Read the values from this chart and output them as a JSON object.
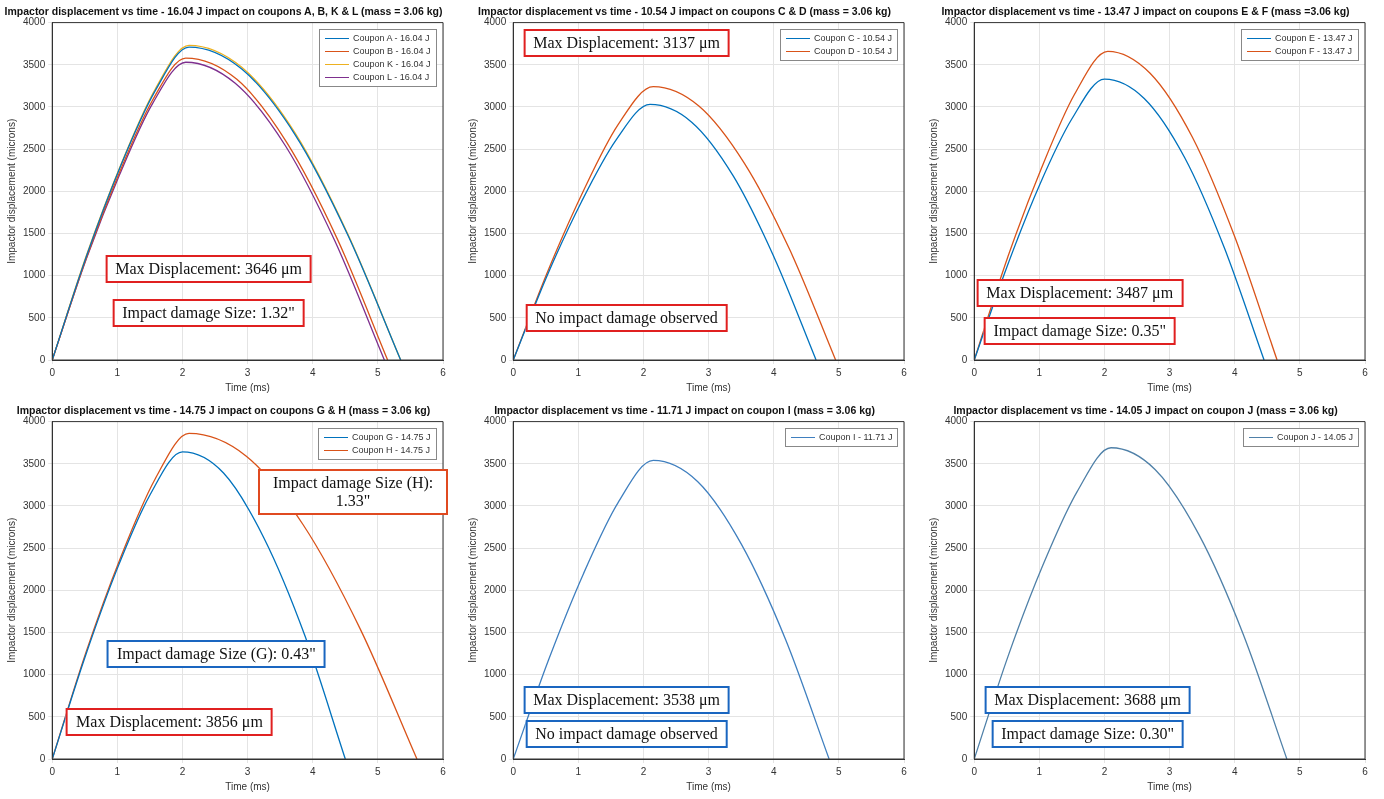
{
  "chart_data": [
    {
      "type": "line",
      "title": "Impactor displacement vs time - 16.04 J impact on coupons A, B, K & L (mass = 3.06 kg)",
      "xlabel": "Time (ms)",
      "ylabel": "Impactor displacement (microns)",
      "xlim": [
        0,
        6
      ],
      "xticks": [
        0,
        1,
        2,
        3,
        4,
        5,
        6
      ],
      "ylim": [
        0,
        4000
      ],
      "yticks": [
        0,
        500,
        1000,
        1500,
        2000,
        2500,
        3000,
        3500,
        4000
      ],
      "grid": true,
      "legend": "top right",
      "marker": "none",
      "line_style": "solid",
      "series": [
        {
          "name": "Coupon A - 16.04 J",
          "color": "#0072bd",
          "x": [
            0,
            0.52,
            1.05,
            1.58,
            2.1,
            2.91,
            3.73,
            4.54,
            5.35
          ],
          "values": [
            0,
            1220,
            2300,
            3190,
            3710,
            3450,
            2670,
            1480,
            0
          ]
        },
        {
          "name": "Coupon B - 16.04 J",
          "color": "#d95319",
          "x": [
            0,
            0.51,
            1.03,
            1.54,
            2.05,
            2.83,
            3.6,
            4.38,
            5.15
          ],
          "values": [
            0,
            1180,
            2220,
            3080,
            3580,
            3330,
            2580,
            1430,
            0
          ]
        },
        {
          "name": "Coupon K - 16.04 J",
          "color": "#edb120",
          "x": [
            0,
            0.52,
            1.05,
            1.58,
            2.1,
            2.91,
            3.73,
            4.54,
            5.35
          ],
          "values": [
            0,
            1230,
            2310,
            3210,
            3730,
            3470,
            2690,
            1490,
            0
          ]
        },
        {
          "name": "Coupon L - 16.04 J",
          "color": "#7e2f8e",
          "x": [
            0,
            0.51,
            1.03,
            1.54,
            2.05,
            2.81,
            3.58,
            4.34,
            5.1
          ],
          "values": [
            0,
            1170,
            2190,
            3040,
            3530,
            3280,
            2540,
            1410,
            0
          ]
        }
      ],
      "annotations": [
        "Max Displacement: 3646 μm",
        "Impact damage Size: 1.32\""
      ]
    },
    {
      "type": "line",
      "title": "Impactor displacement vs time - 10.54 J impact on coupons C & D (mass = 3.06 kg)",
      "xlabel": "Time (ms)",
      "ylabel": "Impactor displacement (microns)",
      "xlim": [
        0,
        6
      ],
      "xticks": [
        0,
        1,
        2,
        3,
        4,
        5,
        6
      ],
      "ylim": [
        0,
        4000
      ],
      "yticks": [
        0,
        500,
        1000,
        1500,
        2000,
        2500,
        3000,
        3500,
        4000
      ],
      "grid": true,
      "legend": "top right",
      "marker": "none",
      "line_style": "solid",
      "series": [
        {
          "name": "Coupon C - 10.54 J",
          "color": "#0072bd",
          "x": [
            0,
            0.52,
            1.05,
            1.58,
            2.1,
            2.74,
            3.38,
            4.01,
            4.65
          ],
          "values": [
            0,
            1000,
            1880,
            2610,
            3030,
            2820,
            2180,
            1210,
            0
          ]
        },
        {
          "name": "Coupon D - 10.54 J",
          "color": "#d95319",
          "x": [
            0,
            0.54,
            1.08,
            1.61,
            2.15,
            2.85,
            3.55,
            4.25,
            4.95
          ],
          "values": [
            0,
            1070,
            2010,
            2790,
            3240,
            3010,
            2330,
            1300,
            0
          ]
        }
      ],
      "annotations": [
        "Max Displacement: 3137 μm",
        "No impact damage observed"
      ]
    },
    {
      "type": "line",
      "title": "Impactor displacement vs time - 13.47 J impact on coupons E & F (mass =3.06 kg)",
      "xlabel": "Time (ms)",
      "ylabel": "Impactor displacement (microns)",
      "xlim": [
        0,
        6
      ],
      "xticks": [
        0,
        1,
        2,
        3,
        4,
        5,
        6
      ],
      "ylim": [
        0,
        4000
      ],
      "yticks": [
        0,
        500,
        1000,
        1500,
        2000,
        2500,
        3000,
        3500,
        4000
      ],
      "grid": true,
      "legend": "top right",
      "marker": "none",
      "line_style": "solid",
      "series": [
        {
          "name": "Coupon E - 13.47 J",
          "color": "#0072bd",
          "x": [
            0,
            0.5,
            1,
            1.5,
            2,
            2.61,
            3.23,
            3.84,
            4.45
          ],
          "values": [
            0,
            1100,
            2070,
            2860,
            3330,
            3100,
            2400,
            1330,
            0
          ]
        },
        {
          "name": "Coupon F - 13.47 J",
          "color": "#d95319",
          "x": [
            0,
            0.51,
            1.03,
            1.54,
            2.05,
            2.7,
            3.35,
            4.0,
            4.65
          ],
          "values": [
            0,
            1210,
            2270,
            3150,
            3660,
            3400,
            2640,
            1460,
            0
          ]
        }
      ],
      "annotations": [
        "Max Displacement: 3487 μm",
        "Impact damage Size: 0.35\""
      ]
    },
    {
      "type": "line",
      "title": "Impactor displacement vs time - 14.75 J impact on coupons G & H (mass = 3.06 kg)",
      "xlabel": "Time (ms)",
      "ylabel": "Impactor displacement (microns)",
      "xlim": [
        0,
        6
      ],
      "xticks": [
        0,
        1,
        2,
        3,
        4,
        5,
        6
      ],
      "ylim": [
        0,
        4000
      ],
      "yticks": [
        0,
        500,
        1000,
        1500,
        2000,
        2500,
        3000,
        3500,
        4000
      ],
      "grid": true,
      "legend": "top right",
      "marker": "none",
      "line_style": "solid",
      "series": [
        {
          "name": "Coupon G - 14.75 J",
          "color": "#0072bd",
          "x": [
            0,
            0.5,
            1,
            1.5,
            2,
            2.63,
            3.25,
            3.88,
            4.5
          ],
          "values": [
            0,
            1200,
            2260,
            3130,
            3640,
            3390,
            2620,
            1460,
            0
          ]
        },
        {
          "name": "Coupon H - 14.75 J",
          "color": "#d95319",
          "x": [
            0,
            0.52,
            1.05,
            1.58,
            2.1,
            2.98,
            3.85,
            4.73,
            5.6
          ],
          "values": [
            0,
            1270,
            2390,
            3320,
            3860,
            3590,
            2780,
            1540,
            0
          ]
        }
      ],
      "annotations": [
        "Impact damage Size (H): 1.33\"",
        "Impact damage Size (G): 0.43\"",
        "Max Displacement: 3856 μm"
      ]
    },
    {
      "type": "line",
      "title": "Impactor displacement vs time - 11.71 J impact on coupon I (mass = 3.06 kg)",
      "xlabel": "Time (ms)",
      "ylabel": "Impactor displacement (microns)",
      "xlim": [
        0,
        6
      ],
      "xticks": [
        0,
        1,
        2,
        3,
        4,
        5,
        6
      ],
      "ylim": [
        0,
        4000
      ],
      "yticks": [
        0,
        500,
        1000,
        1500,
        2000,
        2500,
        3000,
        3500,
        4000
      ],
      "grid": true,
      "legend": "top right",
      "marker": "none",
      "line_style": "solid",
      "series": [
        {
          "name": "Coupon I - 11.71 J",
          "color": "#3f7fbf",
          "x": [
            0,
            0.54,
            1.08,
            1.61,
            2.15,
            2.83,
            3.5,
            4.18,
            4.85
          ],
          "values": [
            0,
            1170,
            2200,
            3040,
            3540,
            3290,
            2550,
            1420,
            0
          ]
        }
      ],
      "annotations": [
        "Max Displacement: 3538 μm",
        "No impact damage observed"
      ]
    },
    {
      "type": "line",
      "title": "Impactor displacement vs time - 14.05 J impact on coupon J (mass = 3.06 kg)",
      "xlabel": "Time (ms)",
      "ylabel": "Impactor displacement (microns)",
      "xlim": [
        0,
        6
      ],
      "xticks": [
        0,
        1,
        2,
        3,
        4,
        5,
        6
      ],
      "ylim": [
        0,
        4000
      ],
      "yticks": [
        0,
        500,
        1000,
        1500,
        2000,
        2500,
        3000,
        3500,
        4000
      ],
      "grid": true,
      "legend": "top right",
      "marker": "none",
      "line_style": "solid",
      "series": [
        {
          "name": "Coupon J - 14.05 J",
          "color": "#4f80a8",
          "x": [
            0,
            0.52,
            1.05,
            1.58,
            2.1,
            2.78,
            3.45,
            4.13,
            4.8
          ],
          "values": [
            0,
            1220,
            2290,
            3170,
            3690,
            3430,
            2660,
            1480,
            0
          ]
        }
      ],
      "annotations": [
        "Max Displacement: 3688 μm",
        "Impact damage Size: 0.30\""
      ]
    }
  ]
}
